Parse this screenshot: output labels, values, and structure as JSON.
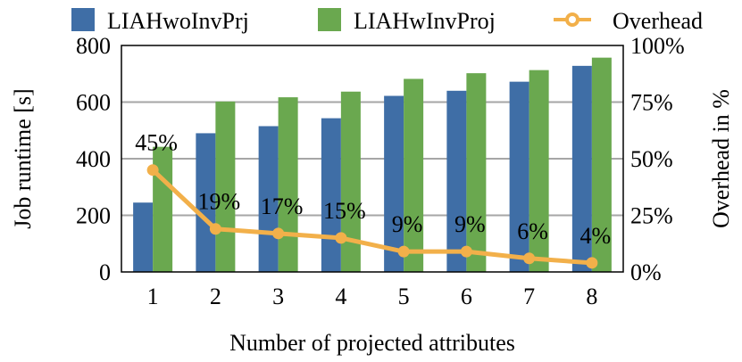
{
  "chart_data": {
    "type": "bar",
    "categories": [
      "1",
      "2",
      "3",
      "4",
      "5",
      "6",
      "7",
      "8"
    ],
    "xlabel": "Number of projected attributes",
    "ylabel": "Job runtime [s]",
    "y2label": "Overhead in %",
    "ylim": [
      0,
      800
    ],
    "y2lim": [
      0,
      100
    ],
    "yticks": [
      "0",
      "200",
      "400",
      "600",
      "800"
    ],
    "y2ticks": [
      "0%",
      "25%",
      "50%",
      "75%",
      "100%"
    ],
    "grid": true,
    "legend_position": "top",
    "series": [
      {
        "name": "LIAHwoInvPrj",
        "type": "bar",
        "axis": "left",
        "color": "#3f6ea6",
        "values": [
          245,
          490,
          515,
          543,
          622,
          640,
          672,
          728
        ]
      },
      {
        "name": "LIAHwInvProj",
        "type": "bar",
        "axis": "left",
        "color": "#6aa84f",
        "values": [
          442,
          602,
          617,
          637,
          682,
          702,
          713,
          757
        ]
      },
      {
        "name": "Overhead",
        "type": "line",
        "axis": "right",
        "color": "#f2b04a",
        "values": [
          45,
          19,
          17,
          15,
          9,
          9,
          6,
          4
        ],
        "labels": [
          "45%",
          "19%",
          "17%",
          "15%",
          "9%",
          "9%",
          "6%",
          "4%"
        ]
      }
    ]
  }
}
